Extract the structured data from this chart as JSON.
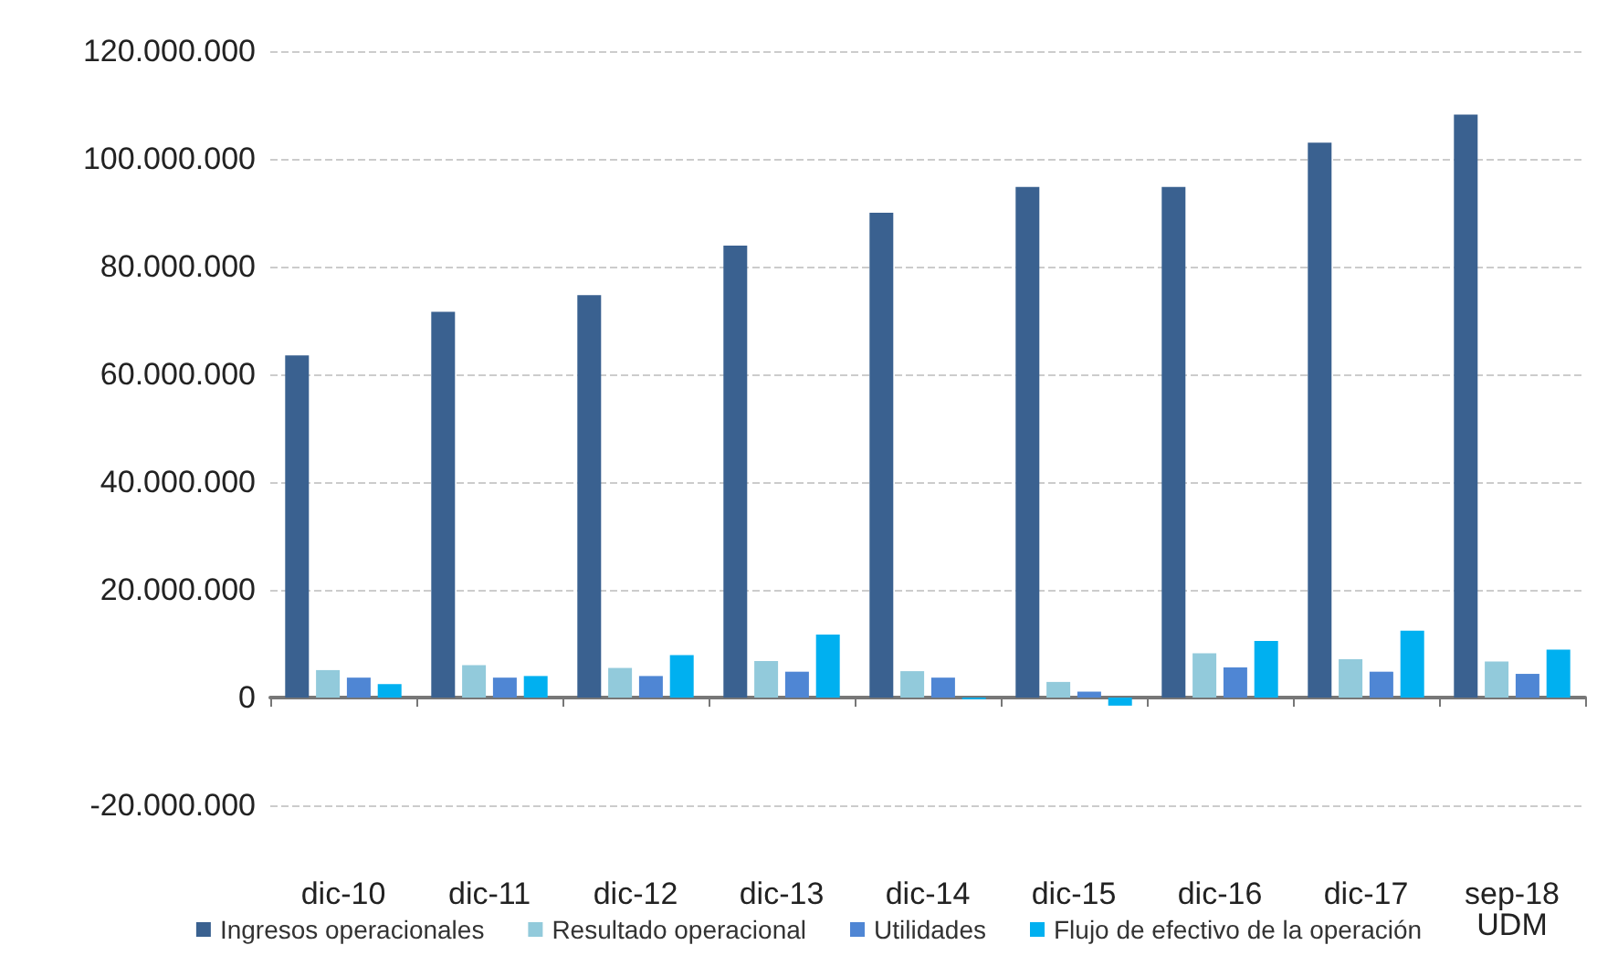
{
  "chart_data": {
    "type": "bar",
    "categories": [
      "dic-10",
      "dic-11",
      "dic-12",
      "dic-13",
      "dic-14",
      "dic-15",
      "dic-16",
      "dic-17",
      "sep-18\nUDM"
    ],
    "series": [
      {
        "name": "Ingresos operacionales",
        "color": "#3a6190",
        "values": [
          63500000,
          71600000,
          74700000,
          83900000,
          90000000,
          94800000,
          94800000,
          103000000,
          108200000
        ]
      },
      {
        "name": "Resultado operacional",
        "color": "#92cadb",
        "values": [
          5100000,
          6000000,
          5500000,
          6800000,
          4900000,
          2900000,
          8200000,
          7100000,
          6700000
        ]
      },
      {
        "name": "Utilidades",
        "color": "#4f86d4",
        "values": [
          3700000,
          3700000,
          4000000,
          4800000,
          3700000,
          1100000,
          5600000,
          4800000,
          4400000
        ]
      },
      {
        "name": "Flujo de efectivo de la operación",
        "color": "#00b0f0",
        "values": [
          2500000,
          4000000,
          7900000,
          11700000,
          -300000,
          -1500000,
          10500000,
          12400000,
          8900000
        ]
      }
    ],
    "ylim": [
      -20000000,
      120000000
    ],
    "yticks": [
      {
        "value": -20000000,
        "label": "-20.000.000"
      },
      {
        "value": 0,
        "label": "0"
      },
      {
        "value": 20000000,
        "label": "20.000.000"
      },
      {
        "value": 40000000,
        "label": "40.000.000"
      },
      {
        "value": 60000000,
        "label": "60.000.000"
      },
      {
        "value": 80000000,
        "label": "80.000.000"
      },
      {
        "value": 100000000,
        "label": "100.000.000"
      },
      {
        "value": 120000000,
        "label": "120.000.000"
      }
    ],
    "grid": "y",
    "legend": "bottom"
  }
}
